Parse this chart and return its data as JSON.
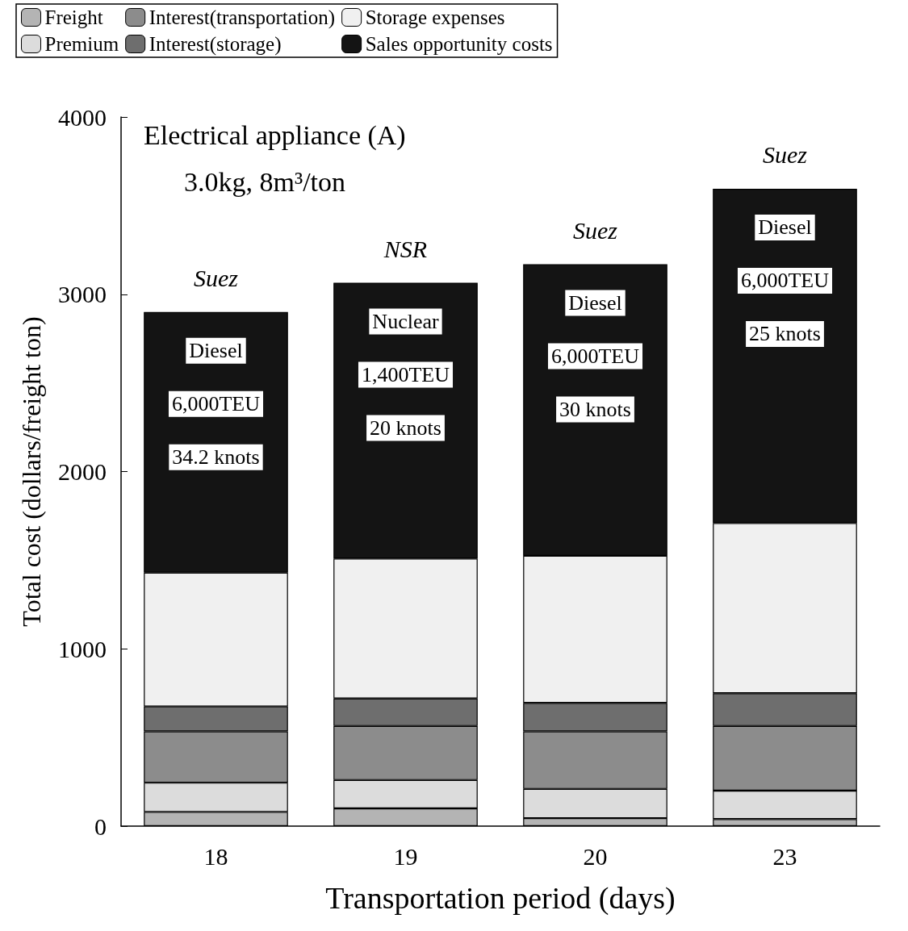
{
  "chart_data": {
    "type": "bar",
    "stacked": true,
    "xlabel": "Transportation period (days)",
    "ylabel": "Total cost (dollars/freight ton)",
    "categories": [
      "18",
      "19",
      "20",
      "23"
    ],
    "series": [
      {
        "name": "Freight",
        "color": "#b4b4b4",
        "values": [
          80,
          100,
          45,
          40
        ]
      },
      {
        "name": "Premium",
        "color": "#dcdcdc",
        "values": [
          165,
          160,
          165,
          160
        ]
      },
      {
        "name": "Interest(transportation)",
        "color": "#8c8c8c",
        "values": [
          290,
          305,
          325,
          365
        ]
      },
      {
        "name": "Interest(storage)",
        "color": "#6e6e6e",
        "values": [
          140,
          155,
          160,
          185
        ]
      },
      {
        "name": "Storage expenses",
        "color": "#f0f0f0",
        "values": [
          755,
          790,
          830,
          960
        ]
      },
      {
        "name": "Sales opportunity costs",
        "color": "#141414",
        "values": [
          1470,
          1555,
          1645,
          1885
        ]
      }
    ],
    "ylim": [
      0,
      4000
    ],
    "yticks": [
      0,
      1000,
      2000,
      3000,
      4000
    ],
    "grid": false,
    "legend": "top",
    "annotations": [
      "Electrical appliance (A)",
      "3.0kg, 8m³/ton",
      "Suez",
      "NSR",
      "Suez",
      "Suez",
      "Diesel",
      "6,000TEU",
      "34.2 knots",
      "Nuclear",
      "1,400TEU",
      "20 knots",
      "Diesel",
      "6,000TEU",
      "30 knots",
      "Diesel",
      "6,000TEU",
      "25 knots"
    ]
  }
}
